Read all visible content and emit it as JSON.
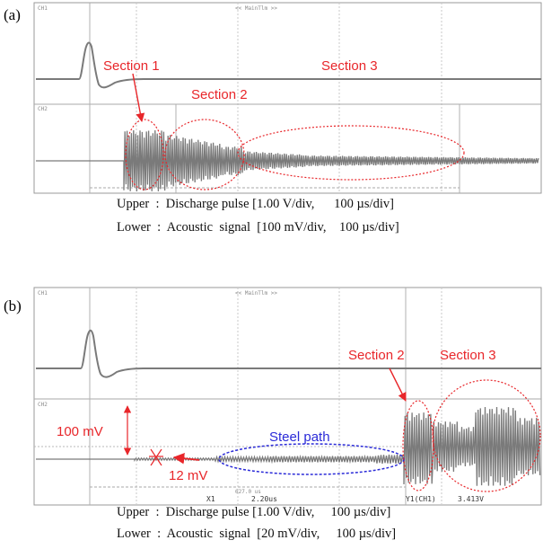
{
  "panel_a": {
    "letter": "(a)",
    "scope_header": "<< MainTlm >>",
    "ch1_tag": "CH1",
    "ch2_tag": "CH2",
    "labels": {
      "section1": "Section 1",
      "section2": "Section 2",
      "section3": "Section 3"
    },
    "caption_upper": "Upper  :  Discharge pulse [1.00 V/div,      100 µs/div]",
    "caption_lower": "Lower  :  Acoustic  signal  [100 mV/div,    100 µs/div]"
  },
  "panel_b": {
    "letter": "(b)",
    "scope_header": "<< MainTlm >>",
    "ch1_tag": "CH1",
    "ch2_tag": "CH2",
    "labels": {
      "section2": "Section 2",
      "section3": "Section 3",
      "steel_path": "Steel  path",
      "amp_100": "100 mV",
      "amp_12": "12 mV"
    },
    "readouts": {
      "x1": "X1",
      "x1_time": "2.20us",
      "span": "627.0 us",
      "y1": "Y1(CH1)",
      "y1_val": "3.413V"
    },
    "caption_upper": "Upper  :  Discharge pulse [1.00 V/div,     100 µs/div]",
    "caption_lower": "Lower  :  Acoustic  signal  [20 mV/div,     100 µs/div]"
  },
  "colors": {
    "annotation_red": "#e8262a",
    "annotation_blue": "#2b2bd8",
    "trace": "#7a7a7a",
    "grid": "#c9c9c9"
  }
}
